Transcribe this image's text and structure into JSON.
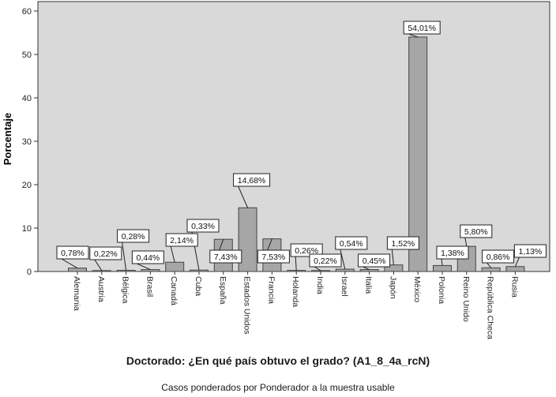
{
  "chart_data": {
    "type": "bar",
    "categories": [
      "Alemania",
      "Austria",
      "Bélgica",
      "Brasil",
      "Canadá",
      "Cuba",
      "España",
      "Estados Unidos",
      "Francia",
      "Holanda",
      "India",
      "Israel",
      "Italia",
      "Japón",
      "México",
      "Polonia",
      "Reino Unido",
      "República Checa",
      "Rusia"
    ],
    "values": [
      0.78,
      0.22,
      0.28,
      0.44,
      2.14,
      0.33,
      7.43,
      14.68,
      7.53,
      0.26,
      0.22,
      0.54,
      0.45,
      1.52,
      54.01,
      1.38,
      5.8,
      0.86,
      1.13
    ],
    "data_labels": [
      "0,78%",
      "0,22%",
      "0,28%",
      "0,44%",
      "2,14%",
      "0,33%",
      "7,43%",
      "14,68%",
      "7,53%",
      "0,26%",
      "0,22%",
      "0,54%",
      "0,45%",
      "1,52%",
      "54,01%",
      "1,38%",
      "5,80%",
      "0,86%",
      "1,13%"
    ],
    "xlabel": "Doctorado: ¿En qué país obtuvo el grado? (A1_8_4a_rcN)",
    "ylabel": "Porcentaje",
    "ylim": [
      0,
      62
    ],
    "yticks": [
      0,
      10,
      20,
      30,
      40,
      50,
      60
    ],
    "ytick_labels": [
      "0",
      "10",
      "20",
      "30",
      "40",
      "50",
      "60"
    ],
    "grid": false,
    "legend": "none",
    "colors": {
      "plot_bg": "#d9d9d9",
      "bar_fill": "#a6a6a6",
      "bar_stroke": "#444444",
      "label_bg": "#ffffff"
    }
  },
  "footnote": "Casos ponderados por Ponderador a la muestra usable"
}
